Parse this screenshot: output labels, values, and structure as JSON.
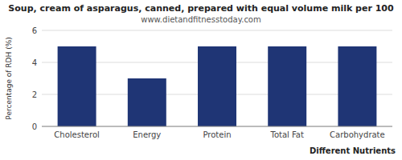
{
  "chart_data": {
    "type": "bar",
    "title": "Soup, cream of asparagus, canned, prepared with equal volume milk per 100",
    "subtitle": "www.dietandfitnesstoday.com",
    "categories": [
      "Cholesterol",
      "Energy",
      "Protein",
      "Total Fat",
      "Carbohydrate"
    ],
    "values": [
      5.0,
      3.0,
      5.0,
      5.0,
      5.0
    ],
    "color": "#1f3575",
    "xlabel": "Different Nutrients",
    "ylabel": "Percentage of RDH (%)",
    "ylim": [
      0,
      6
    ],
    "yticks": [
      0,
      2,
      4,
      6
    ],
    "grid": true
  }
}
